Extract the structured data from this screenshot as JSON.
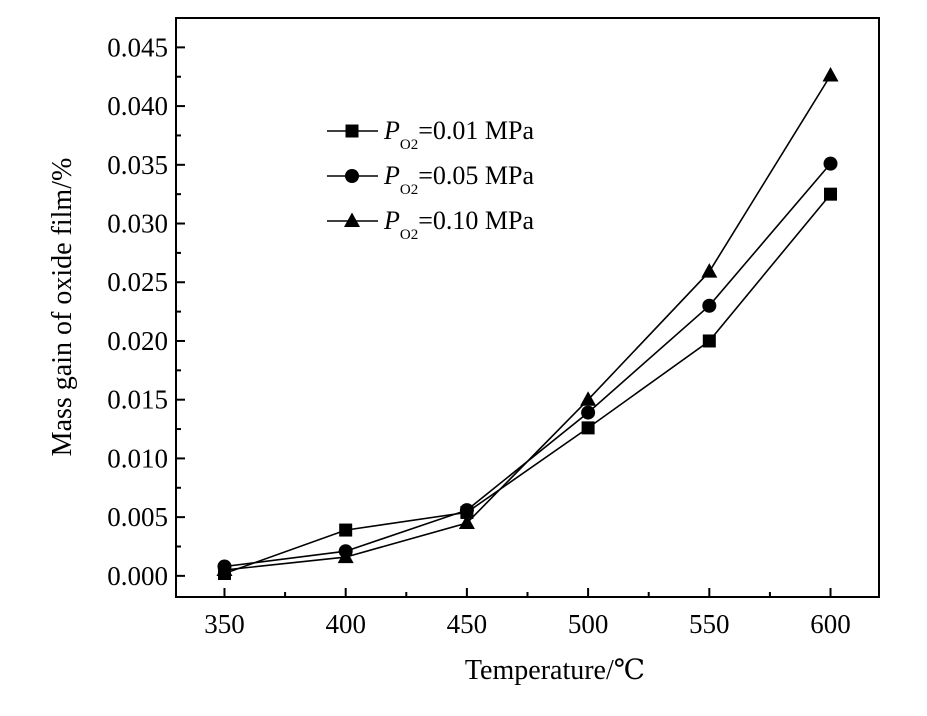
{
  "chart_data": {
    "type": "line",
    "xlabel": "Temperature/℃",
    "ylabel": "Mass gain of oxide film/%",
    "x": [
      350,
      400,
      450,
      500,
      550,
      600
    ],
    "xlim": [
      330,
      620
    ],
    "ylim": [
      -0.0018,
      0.0475
    ],
    "xticks": [
      "350",
      "400",
      "450",
      "500",
      "550",
      "600"
    ],
    "yticks": [
      "0.000",
      "0.005",
      "0.010",
      "0.015",
      "0.020",
      "0.025",
      "0.030",
      "0.035",
      "0.040",
      "0.045"
    ],
    "grid": false,
    "legend_position": "top-left",
    "series": [
      {
        "name": "P_O2=0.01 MPa",
        "symbol": "P",
        "subscript": "O2",
        "value_text": "=0.01 MPa",
        "marker": "square",
        "values": [
          0.0002,
          0.0039,
          0.0054,
          0.0126,
          0.02,
          0.0325
        ]
      },
      {
        "name": "P_O2=0.05 MPa",
        "symbol": "P",
        "subscript": "O2",
        "value_text": "=0.05 MPa",
        "marker": "circle",
        "values": [
          0.0008,
          0.0021,
          0.0056,
          0.0139,
          0.023,
          0.0351
        ]
      },
      {
        "name": "P_O2=0.10 MPa",
        "symbol": "P",
        "subscript": "O2",
        "value_text": "=0.10 MPa",
        "marker": "triangle",
        "values": [
          0.0005,
          0.0016,
          0.0045,
          0.015,
          0.0259,
          0.0426
        ]
      }
    ]
  }
}
